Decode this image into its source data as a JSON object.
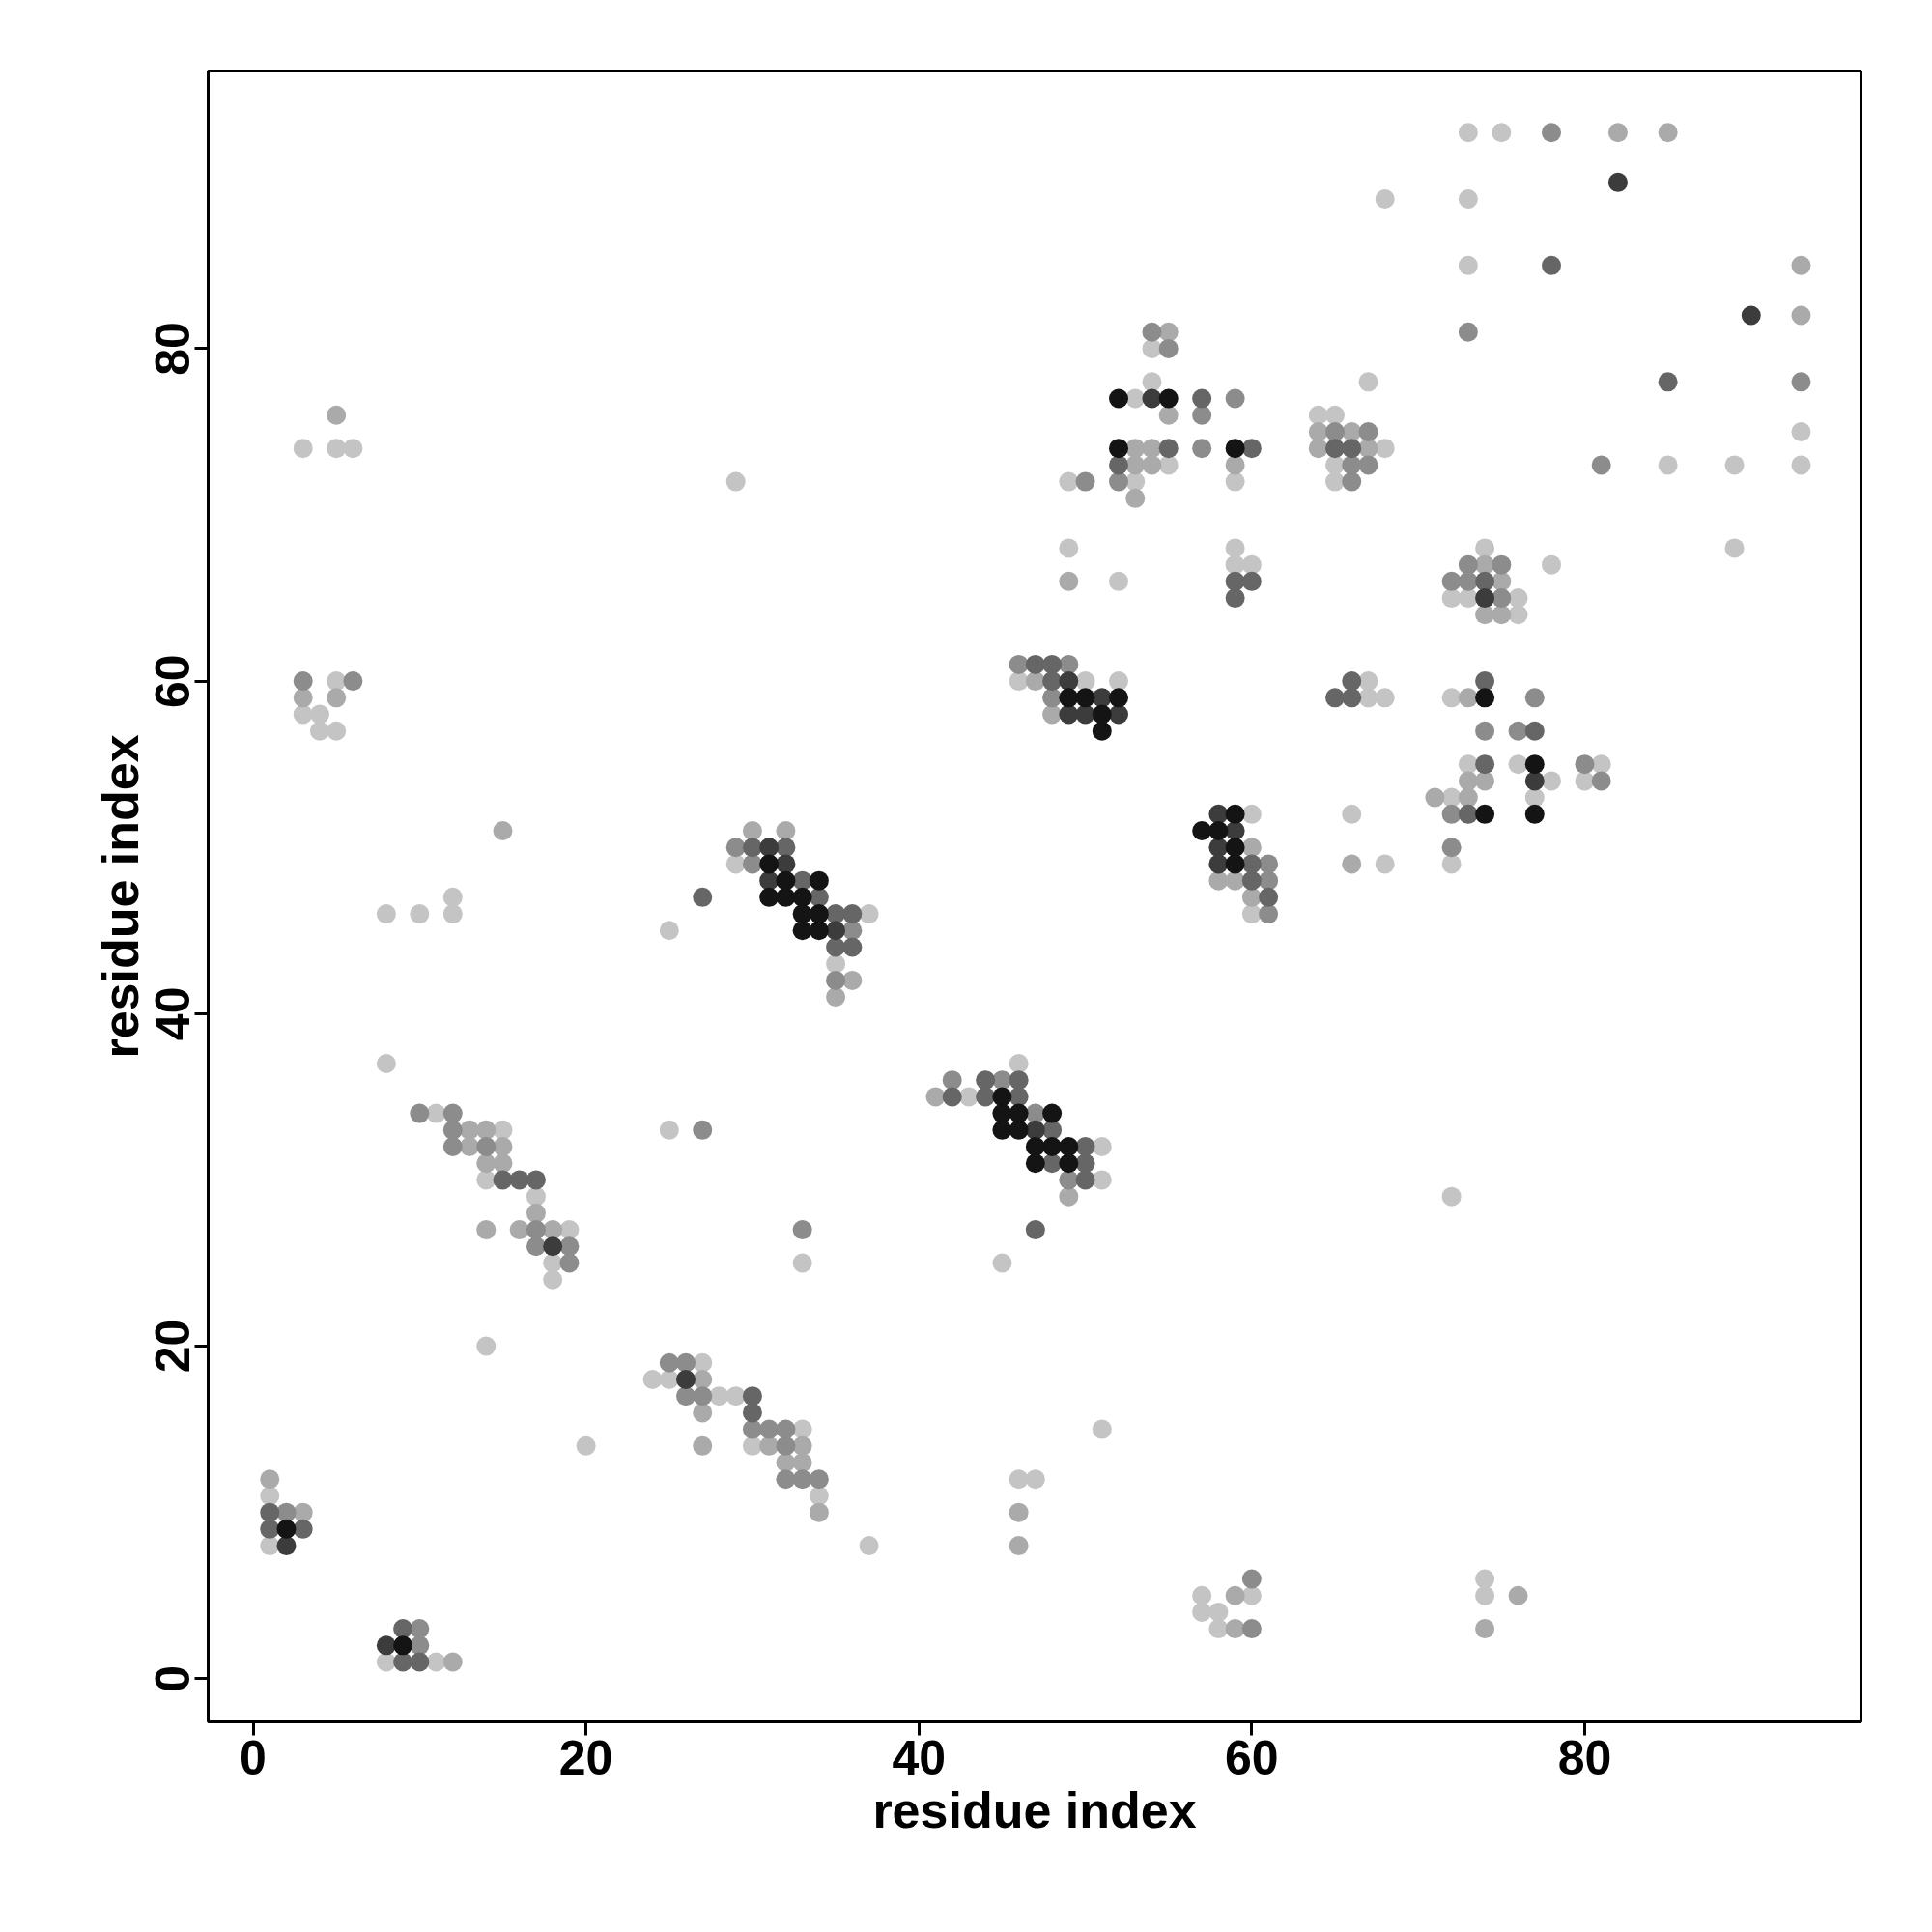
{
  "chart_data": {
    "type": "scatter",
    "xlabel": "residue index",
    "ylabel": "residue index",
    "xlim": [
      -2.7,
      96.6
    ],
    "ylim": [
      -2.6,
      96.7
    ],
    "xticks": [
      0,
      20,
      40,
      60,
      80
    ],
    "yticks": [
      0,
      20,
      40,
      60,
      80
    ],
    "grid": false,
    "marker": "circle",
    "series": [
      {
        "color": "#c4c4c4",
        "x": [
          1,
          1,
          8,
          11,
          8,
          11,
          15,
          14,
          17,
          19,
          18,
          18,
          14,
          24,
          25,
          27,
          28,
          29,
          30,
          33,
          34,
          20,
          37,
          33,
          45,
          46,
          47,
          46,
          43,
          51,
          51,
          51,
          72,
          57,
          60,
          57,
          58,
          58,
          74,
          74,
          3,
          4,
          4,
          5,
          5,
          8,
          10,
          12,
          12,
          25,
          25,
          37,
          35,
          29,
          46,
          50,
          52,
          67,
          67,
          68,
          72,
          73,
          76,
          81,
          78,
          80,
          72,
          77,
          66,
          72,
          68,
          60,
          60,
          73,
          75,
          68,
          73,
          73,
          54,
          54,
          67,
          53,
          64,
          65,
          93,
          68,
          55,
          65,
          85,
          89,
          93,
          49,
          53,
          59,
          65,
          49,
          59,
          89,
          74,
          59,
          60,
          78,
          52,
          72,
          73,
          76,
          76,
          3,
          5,
          6,
          29
        ],
        "values": [
          11,
          8,
          1,
          1,
          37,
          34,
          33,
          30,
          29,
          27,
          25,
          24,
          20,
          18,
          18,
          19,
          17,
          17,
          14,
          15,
          11,
          14,
          8,
          25,
          25,
          12,
          12,
          37,
          35,
          32,
          30,
          15,
          29,
          5,
          5,
          4,
          4,
          3,
          6,
          5,
          58,
          58,
          57,
          57,
          60,
          46,
          46,
          47,
          46,
          45,
          33,
          46,
          43,
          49,
          60,
          60,
          60,
          60,
          59,
          59,
          59,
          55,
          55,
          55,
          54,
          54,
          53,
          53,
          52,
          49,
          49,
          52,
          46,
          93,
          93,
          89,
          89,
          85,
          80,
          78,
          78,
          77,
          76,
          76,
          75,
          74,
          73,
          73,
          73,
          73,
          73,
          72,
          72,
          72,
          72,
          68,
          68,
          68,
          68,
          67,
          67,
          67,
          66,
          65,
          65,
          65,
          64,
          74,
          74,
          74,
          72
        ]
      },
      {
        "color": "#aaaaaa",
        "x": [
          1,
          3,
          12,
          14,
          13,
          13,
          15,
          14,
          15,
          17,
          14,
          16,
          18,
          27,
          27,
          31,
          33,
          32,
          33,
          34,
          27,
          15,
          41,
          49,
          30,
          32,
          5,
          3,
          5,
          36,
          35,
          47,
          48,
          73,
          74,
          71,
          73,
          66,
          60,
          58,
          59,
          60,
          73,
          82,
          85,
          93,
          93,
          55,
          55,
          64,
          66,
          53,
          54,
          64,
          67,
          53,
          54,
          59,
          53,
          74,
          75,
          74,
          75,
          46,
          46,
          59,
          59,
          76,
          74,
          49
        ],
        "values": [
          12,
          10,
          1,
          33,
          33,
          32,
          32,
          31,
          31,
          28,
          27,
          27,
          27,
          18,
          16,
          14,
          14,
          13,
          13,
          10,
          14,
          51,
          35,
          29,
          51,
          51,
          76,
          59,
          59,
          42,
          41,
          60,
          58,
          54,
          54,
          53,
          53,
          49,
          50,
          48,
          48,
          47,
          59,
          93,
          93,
          85,
          82,
          81,
          76,
          75,
          75,
          74,
          74,
          74,
          74,
          73,
          73,
          73,
          71,
          67,
          66,
          64,
          64,
          10,
          8,
          5,
          3,
          5,
          3,
          66
        ]
      },
      {
        "color": "#8c8c8c",
        "x": [
          2,
          10,
          10,
          10,
          12,
          12,
          12,
          14,
          17,
          17,
          19,
          19,
          25,
          26,
          26,
          27,
          30,
          31,
          32,
          32,
          32,
          33,
          34,
          33,
          27,
          42,
          45,
          47,
          49,
          29,
          30,
          3,
          6,
          36,
          35,
          46,
          49,
          48,
          77,
          74,
          76,
          80,
          81,
          72,
          72,
          61,
          61,
          61,
          78,
          73,
          54,
          55,
          93,
          59,
          57,
          65,
          67,
          57,
          66,
          67,
          81,
          50,
          52,
          66,
          73,
          75,
          72,
          73,
          75,
          60,
          60
        ],
        "values": [
          10,
          3,
          2,
          34,
          34,
          33,
          32,
          32,
          27,
          26,
          26,
          25,
          19,
          19,
          17,
          17,
          15,
          15,
          15,
          14,
          12,
          12,
          12,
          27,
          33,
          36,
          36,
          34,
          30,
          50,
          49,
          60,
          60,
          45,
          42,
          61,
          61,
          59,
          59,
          57,
          57,
          55,
          54,
          52,
          50,
          49,
          48,
          46,
          93,
          81,
          81,
          80,
          78,
          77,
          76,
          75,
          75,
          74,
          73,
          73,
          73,
          72,
          72,
          72,
          67,
          67,
          66,
          66,
          65,
          6,
          3
        ]
      },
      {
        "color": "#666666",
        "x": [
          1,
          1,
          3,
          9,
          9,
          10,
          15,
          16,
          17,
          30,
          30,
          47,
          44,
          46,
          42,
          44,
          46,
          48,
          50,
          48,
          50,
          50,
          30,
          32,
          34,
          33,
          35,
          36,
          35,
          36,
          47,
          48,
          48,
          66,
          65,
          66,
          74,
          77,
          74,
          73,
          60,
          60,
          61,
          85,
          57,
          55,
          60,
          65,
          66,
          52,
          59,
          60,
          74,
          59,
          27,
          78
        ],
        "values": [
          10,
          9,
          9,
          3,
          1,
          1,
          30,
          30,
          30,
          17,
          16,
          27,
          36,
          36,
          35,
          35,
          35,
          33,
          32,
          31,
          31,
          30,
          50,
          50,
          47,
          48,
          46,
          46,
          44,
          44,
          61,
          61,
          60,
          60,
          59,
          59,
          60,
          57,
          55,
          52,
          49,
          48,
          47,
          78,
          77,
          74,
          74,
          74,
          74,
          73,
          66,
          66,
          66,
          65,
          47,
          85
        ]
      },
      {
        "color": "#3c3c3c",
        "x": [
          2,
          8,
          18,
          26,
          31,
          32,
          31,
          47,
          35,
          49,
          51,
          49,
          50,
          52,
          77,
          58,
          59,
          58,
          58,
          82,
          90,
          54,
          74
        ],
        "values": [
          8,
          2,
          26,
          18,
          50,
          49,
          48,
          33,
          45,
          60,
          59,
          58,
          58,
          58,
          54,
          52,
          51,
          50,
          49,
          90,
          82,
          77,
          65
        ]
      },
      {
        "color": "#141414",
        "x": [
          2,
          9,
          45,
          45,
          46,
          48,
          45,
          46,
          47,
          48,
          49,
          47,
          49,
          31,
          32,
          31,
          32,
          33,
          33,
          34,
          33,
          34,
          34,
          49,
          50,
          52,
          51,
          51,
          74,
          77,
          74,
          77,
          59,
          57,
          58,
          59,
          59,
          52,
          55,
          52,
          59
        ],
        "values": [
          9,
          2,
          35,
          34,
          34,
          34,
          33,
          33,
          32,
          32,
          32,
          31,
          31,
          49,
          48,
          47,
          47,
          47,
          46,
          46,
          45,
          45,
          48,
          59,
          59,
          59,
          58,
          57,
          59,
          55,
          52,
          52,
          52,
          51,
          51,
          50,
          49,
          77,
          77,
          74,
          74
        ]
      }
    ]
  }
}
